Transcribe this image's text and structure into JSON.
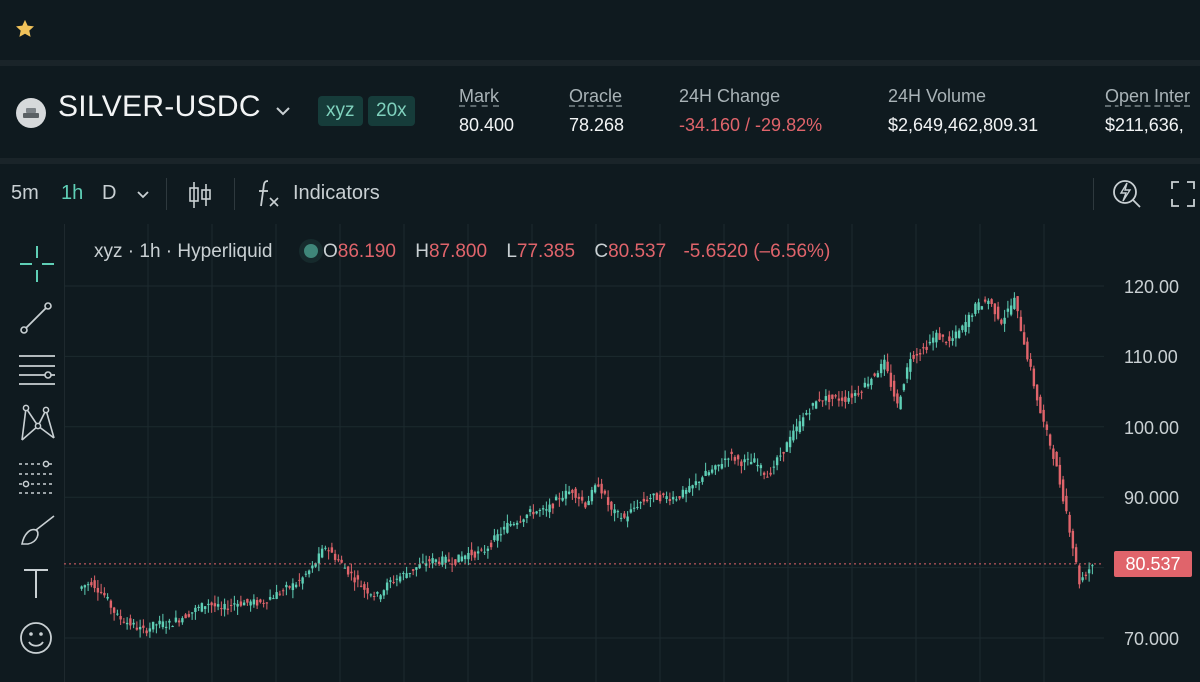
{
  "market": {
    "pair": "SILVER-USDC",
    "tags": [
      "xyz",
      "20x"
    ],
    "stats": [
      {
        "label": "Mark",
        "value": "80.400"
      },
      {
        "label": "Oracle",
        "value": "78.268"
      },
      {
        "label": "24H Change",
        "value": "-34.160 / -29.82%"
      },
      {
        "label": "24H Volume",
        "value": "$2,649,462,809.31"
      },
      {
        "label": "Open Inter",
        "value": "$211,636,"
      }
    ]
  },
  "toolbar": {
    "intervals": [
      "5m",
      "1h",
      "D"
    ],
    "active_interval": "1h",
    "indicators_label": "Indicators"
  },
  "legend": {
    "source": "xyz · 1h · Hyperliquid",
    "O_label": "O",
    "O": "86.190",
    "H_label": "H",
    "H": "87.800",
    "L_label": "L",
    "L": "77.385",
    "C_label": "C",
    "C": "80.537",
    "change": "-5.6520 (–6.56%)"
  },
  "colors": {
    "up": "#5fcfb6",
    "down": "#e0646b",
    "accent": "#5fcfb6",
    "background": "#0f1a1f"
  },
  "chart_data": {
    "type": "line",
    "title": "",
    "xlabel": "",
    "ylabel": "",
    "ylim": [
      67,
      124
    ],
    "y_ticks": [
      "120.00",
      "110.00",
      "100.00",
      "90.000",
      "70.000"
    ],
    "last_price": "80.537",
    "series": [
      {
        "values": [
          77,
          78,
          76,
          73,
          72,
          71,
          72,
          72,
          73,
          74,
          75,
          74,
          75,
          75,
          75,
          76,
          77,
          78,
          80,
          83,
          81,
          79,
          77,
          76,
          78,
          79,
          80,
          81,
          81,
          81,
          82,
          82,
          84,
          86,
          87,
          88,
          88,
          90,
          91,
          89,
          92,
          88,
          87,
          89,
          90,
          90,
          90,
          91,
          93,
          94,
          96,
          95,
          95,
          93,
          96,
          99,
          102,
          104,
          104,
          104,
          105,
          107,
          109,
          103,
          110,
          111,
          113,
          112,
          114,
          117,
          118,
          115,
          118,
          110,
          102,
          96,
          88,
          78,
          80.5
        ]
      }
    ]
  },
  "icons": [
    "star-icon",
    "coin-icon",
    "chevron-down-icon",
    "candles-icon",
    "fx-icon",
    "lightning-icon",
    "fullscreen-icon",
    "crosshair-icon",
    "trendline-icon",
    "horizontal-lines-icon",
    "pattern-icon",
    "fib-icon",
    "brush-icon",
    "text-icon",
    "emoji-icon"
  ]
}
